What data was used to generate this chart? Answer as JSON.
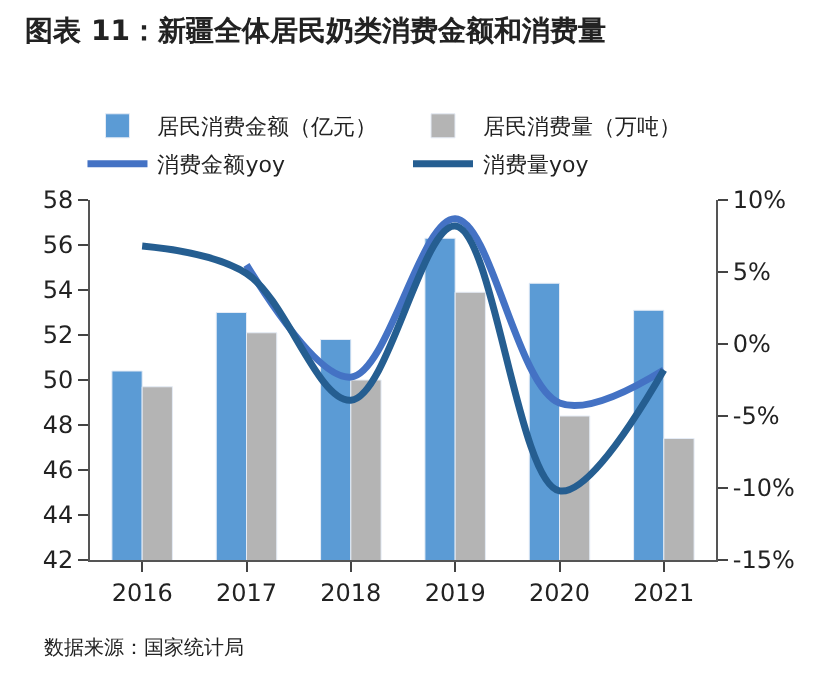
{
  "chart_data": {
    "type": "bar",
    "title": "图表 11：新疆全体居民奶类消费金额和消费量",
    "categories": [
      "2016",
      "2017",
      "2018",
      "2019",
      "2020",
      "2021"
    ],
    "series": [
      {
        "name": "居民消费金额（亿元）",
        "color": "#5b9bd5",
        "values": [
          50.4,
          53.0,
          51.8,
          56.3,
          54.3,
          53.1
        ]
      },
      {
        "name": "居民消费量（万吨）",
        "color": "#b4b4b4",
        "values": [
          49.7,
          52.1,
          50.0,
          53.9,
          48.4,
          47.4
        ]
      },
      {
        "name": "消费金额yoy",
        "type": "line",
        "axis": "y2",
        "color": "#4472c4",
        "values": [
          null,
          5.5,
          -2.3,
          8.7,
          -4.1,
          -1.8
        ]
      },
      {
        "name": "消费量yoy",
        "type": "line",
        "axis": "y2",
        "color": "#255e91",
        "values": [
          6.8,
          4.9,
          -3.9,
          8.2,
          -10.2,
          -1.8
        ]
      }
    ],
    "ylim": [
      42,
      58
    ],
    "yticks": [
      42,
      44,
      46,
      48,
      50,
      52,
      54,
      56,
      58
    ],
    "y2lim": [
      -15,
      10
    ],
    "y2ticks": [
      {
        "value": -15,
        "label": "-15%"
      },
      {
        "value": -10,
        "label": "-10%"
      },
      {
        "value": -5,
        "label": "-5%"
      },
      {
        "value": 0,
        "label": "0%"
      },
      {
        "value": 5,
        "label": "5%"
      },
      {
        "value": 10,
        "label": "10%"
      }
    ],
    "legend": "top",
    "marker": "none",
    "line_style": "solid",
    "annotations": [
      "数据来源：国家统计局"
    ]
  }
}
